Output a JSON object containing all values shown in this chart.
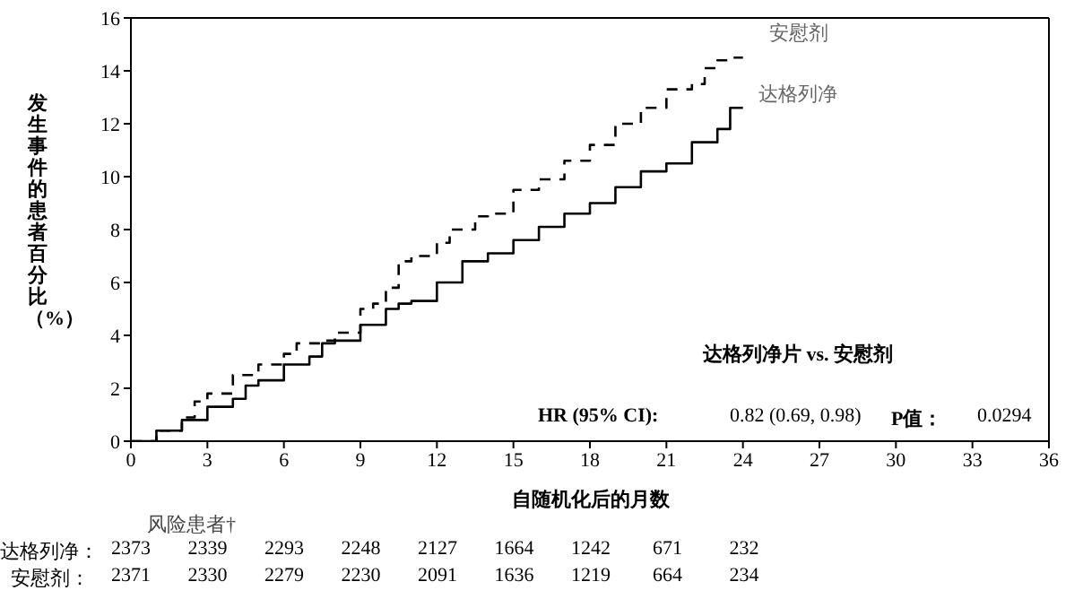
{
  "chart_data": {
    "type": "step",
    "xlabel": "自随机化后的月数",
    "ylabel": "发生事件的患者百分比（%）",
    "xlim": [
      0,
      36
    ],
    "xticks": [
      0,
      3,
      6,
      9,
      12,
      15,
      18,
      21,
      24,
      27,
      30,
      33,
      36
    ],
    "ylim": [
      0,
      16
    ],
    "yticks": [
      0,
      2,
      4,
      6,
      8,
      10,
      12,
      14,
      16
    ],
    "series": [
      {
        "name": "安慰剂",
        "color": "#000000",
        "line_style": "dashed",
        "x": [
          0,
          1,
          2,
          2.5,
          3,
          4,
          5,
          6,
          6.5,
          7.5,
          8,
          9,
          9.5,
          10,
          10.5,
          11,
          12,
          12.5,
          13.5,
          14,
          15,
          16,
          17,
          18,
          19,
          20,
          21,
          22,
          22.5,
          23,
          23.5,
          24
        ],
        "values": [
          0,
          0.4,
          0.9,
          1.5,
          1.8,
          2.5,
          2.9,
          3.3,
          3.7,
          3.8,
          4.1,
          5.0,
          5.2,
          5.8,
          6.8,
          7.0,
          7.5,
          8.0,
          8.5,
          8.6,
          9.5,
          9.9,
          10.6,
          11.2,
          12.0,
          12.6,
          13.3,
          13.5,
          14.1,
          14.4,
          14.5,
          14.5
        ]
      },
      {
        "name": "达格列净",
        "color": "#000000",
        "line_style": "solid",
        "x": [
          0,
          1,
          2,
          3,
          4,
          4.5,
          5,
          6,
          7,
          7.5,
          8,
          9,
          10,
          10.5,
          11,
          12,
          13,
          14,
          15,
          16,
          17,
          18,
          19,
          20,
          21,
          22,
          23,
          23.5,
          24
        ],
        "values": [
          0,
          0.4,
          0.8,
          1.3,
          1.6,
          2.1,
          2.3,
          2.9,
          3.2,
          3.7,
          3.8,
          4.4,
          5.0,
          5.2,
          5.3,
          6.0,
          6.8,
          7.1,
          7.6,
          8.1,
          8.6,
          9.0,
          9.6,
          10.2,
          10.5,
          11.3,
          11.8,
          12.6,
          12.6
        ]
      }
    ],
    "annotations": [
      "达格列净片 vs. 安慰剂",
      "HR (95% CI):",
      "0.82 (0.69, 0.98)",
      "P值：",
      "0.0294",
      "风险患者†",
      "达格列净：",
      "2373 2339 2293 2248 2127 1664 1242 671 232",
      "安慰剂：",
      "2371 2330 2279 2230 2091 1636 1219 664 234"
    ]
  }
}
